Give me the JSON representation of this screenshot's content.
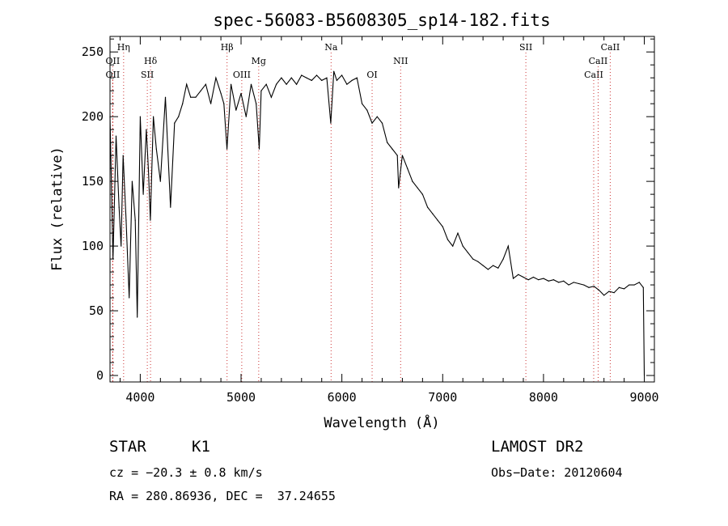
{
  "chart_data": {
    "type": "line",
    "title": "spec-56083-B5608305_sp14-182.fits",
    "xlabel": "Wavelength (Å)",
    "ylabel": "Flux (relative)",
    "xlim": [
      3700,
      9100
    ],
    "ylim": [
      -5,
      262
    ],
    "xticks": [
      4000,
      5000,
      6000,
      7000,
      8000,
      9000
    ],
    "yticks": [
      0,
      50,
      100,
      150,
      200,
      250
    ],
    "grid": false,
    "series": [
      {
        "x": [
          3700,
          3730,
          3760,
          3790,
          3810,
          3830,
          3860,
          3890,
          3920,
          3950,
          3970,
          4000,
          4030,
          4060,
          4080,
          4100,
          4130,
          4160,
          4200,
          4250,
          4300,
          4340,
          4380,
          4420,
          4460,
          4500,
          4550,
          4600,
          4650,
          4700,
          4750,
          4800,
          4830,
          4860,
          4900,
          4950,
          5000,
          5050,
          5100,
          5150,
          5180,
          5200,
          5250,
          5300,
          5350,
          5400,
          5450,
          5500,
          5550,
          5600,
          5650,
          5700,
          5750,
          5800,
          5850,
          5890,
          5920,
          5950,
          6000,
          6050,
          6100,
          6150,
          6200,
          6250,
          6300,
          6350,
          6400,
          6450,
          6500,
          6550,
          6563,
          6600,
          6650,
          6700,
          6750,
          6800,
          6850,
          6900,
          6950,
          7000,
          7050,
          7100,
          7150,
          7200,
          7250,
          7300,
          7350,
          7400,
          7450,
          7500,
          7550,
          7600,
          7650,
          7700,
          7750,
          7800,
          7850,
          7900,
          7950,
          8000,
          8050,
          8100,
          8150,
          8200,
          8250,
          8300,
          8350,
          8400,
          8450,
          8500,
          8550,
          8600,
          8650,
          8700,
          8750,
          8800,
          8850,
          8900,
          8950,
          8990,
          9000
        ],
        "y": [
          200,
          90,
          185,
          130,
          100,
          170,
          120,
          60,
          150,
          120,
          45,
          200,
          140,
          190,
          160,
          120,
          200,
          175,
          150,
          215,
          130,
          195,
          200,
          210,
          225,
          215,
          215,
          220,
          225,
          210,
          230,
          218,
          210,
          175,
          225,
          205,
          218,
          200,
          225,
          210,
          175,
          220,
          225,
          215,
          225,
          230,
          225,
          230,
          225,
          232,
          230,
          228,
          232,
          228,
          230,
          195,
          235,
          228,
          232,
          225,
          228,
          230,
          210,
          205,
          195,
          200,
          195,
          180,
          175,
          170,
          145,
          170,
          160,
          150,
          145,
          140,
          130,
          125,
          120,
          115,
          105,
          100,
          110,
          100,
          95,
          90,
          88,
          85,
          82,
          85,
          83,
          90,
          100,
          75,
          78,
          76,
          74,
          76,
          74,
          75,
          73,
          74,
          72,
          73,
          70,
          72,
          71,
          70,
          68,
          69,
          66,
          62,
          65,
          64,
          68,
          67,
          70,
          70,
          72,
          68,
          0
        ]
      }
    ],
    "line_markers": [
      {
        "x": 3727,
        "label": "OII",
        "row": 2
      },
      {
        "x": 3727,
        "label": "OII",
        "row": 3
      },
      {
        "x": 3835,
        "label": "Hη",
        "row": 1
      },
      {
        "x": 4070,
        "label": "SII",
        "row": 3
      },
      {
        "x": 4102,
        "label": "Hδ",
        "row": 2
      },
      {
        "x": 4861,
        "label": "Hβ",
        "row": 1
      },
      {
        "x": 5007,
        "label": "OIII",
        "row": 3
      },
      {
        "x": 5175,
        "label": "Mg",
        "row": 2
      },
      {
        "x": 5893,
        "label": "Na",
        "row": 1
      },
      {
        "x": 6300,
        "label": "OI",
        "row": 3
      },
      {
        "x": 6583,
        "label": "NII",
        "row": 2
      },
      {
        "x": 7825,
        "label": "SII",
        "row": 1
      },
      {
        "x": 8498,
        "label": "CaII",
        "row": 3
      },
      {
        "x": 8542,
        "label": "CaII",
        "row": 2
      },
      {
        "x": 8662,
        "label": "CaII",
        "row": 1
      }
    ]
  },
  "info": {
    "class_label": "STAR",
    "subclass": "K1",
    "survey": "LAMOST DR2",
    "cz": "cz = −20.3 ± 0.8 km/s",
    "obs_date": "Obs−Date: 20120604",
    "coords": "RA = 280.86936, DEC =  37.24655"
  }
}
